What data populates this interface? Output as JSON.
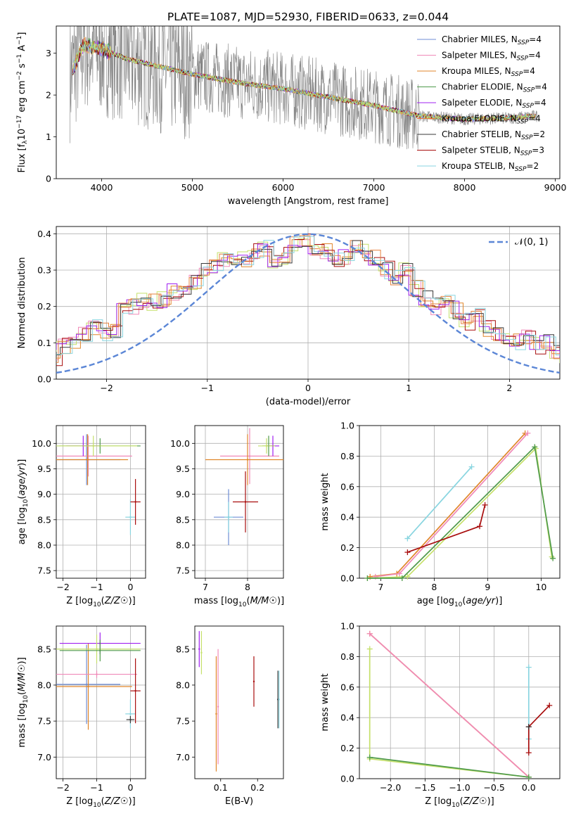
{
  "title": "PLATE=1087, MJD=52930, FIBERID=0633, z=0.044",
  "colors": [
    "#6f8ed6",
    "#f08ab8",
    "#e0862a",
    "#4f9a4a",
    "#a020f0",
    "#e6803d",
    "#3a3a3a",
    "#a80d0d",
    "#89d5e0",
    "#c5e06a"
  ],
  "chart_data": [
    {
      "id": "spectrum",
      "type": "line",
      "xlabel": "wavelength [Angstrom, rest frame]",
      "ylabel": "Flux [f_λ 10^-17 erg cm^-2 s^-1 A^-1]",
      "xlim": [
        3500,
        9050
      ],
      "ylim": [
        0,
        3.65
      ],
      "xticks": [
        "4000",
        "5000",
        "6000",
        "7000",
        "8000",
        "9000"
      ],
      "yticks": [
        "0",
        "1",
        "2",
        "3"
      ],
      "grid": false,
      "legend_position": "top-right",
      "data_continuum": {
        "x": [
          3650,
          3800,
          4000,
          4300,
          4600,
          5000,
          5500,
          6000,
          6500,
          7000,
          7500,
          8000,
          8500,
          8800
        ],
        "y": [
          2.45,
          3.2,
          3.1,
          2.85,
          2.7,
          2.5,
          2.3,
          2.15,
          1.95,
          1.75,
          1.5,
          1.42,
          1.45,
          1.5
        ]
      },
      "series": [
        {
          "name": "Chabrier MILES, N_SSP=4"
        },
        {
          "name": "Salpeter MILES, N_SSP=4"
        },
        {
          "name": "Kroupa MILES, N_SSP=4"
        },
        {
          "name": "Chabrier ELODIE, N_SSP=4"
        },
        {
          "name": "Salpeter ELODIE, N_SSP=4"
        },
        {
          "name": "Kroupa ELODIE, N_SSP=4"
        },
        {
          "name": "Chabrier STELIB, N_SSP=2"
        },
        {
          "name": "Salpeter STELIB, N_SSP=3"
        },
        {
          "name": "Kroupa STELIB, N_SSP=2"
        }
      ]
    },
    {
      "id": "residuals",
      "type": "line",
      "xlabel": "(data-model)/error",
      "ylabel": "Normed distribution",
      "xlim": [
        -2.5,
        2.5
      ],
      "ylim": [
        0,
        0.42
      ],
      "xticks": [
        "−2",
        "−1",
        "0",
        "1",
        "2"
      ],
      "yticks": [
        "0.0",
        "0.1",
        "0.2",
        "0.3",
        "0.4"
      ],
      "grid": true,
      "legend": "𝒩(0, 1)",
      "legend_position": "top-right",
      "histogram_bin_width": 0.1,
      "histogram": [
        0.05,
        0.04,
        0.05,
        0.045,
        0.06,
        0.09,
        0.1,
        0.12,
        0.14,
        0.13,
        0.13,
        0.19,
        0.2,
        0.22,
        0.21,
        0.22,
        0.24,
        0.25,
        0.27,
        0.3,
        0.31,
        0.33,
        0.32,
        0.33,
        0.35,
        0.36,
        0.33,
        0.34,
        0.37,
        0.38,
        0.36,
        0.35,
        0.33,
        0.34,
        0.36,
        0.35,
        0.33,
        0.3,
        0.28,
        0.3,
        0.25,
        0.22,
        0.2,
        0.21,
        0.19,
        0.16,
        0.17,
        0.14,
        0.12,
        0.11,
        0.1,
        0.12,
        0.09,
        0.1,
        0.08,
        0.07,
        0.06,
        0.05,
        0.04,
        0.035
      ]
    },
    {
      "id": "age_vs_Z",
      "type": "scatter",
      "xlabel": "Z [log10(Z/Z☉)]",
      "ylabel": "age  [log10(age/yr)]",
      "xlim": [
        -2.2,
        0.45
      ],
      "ylim": [
        7.35,
        10.35
      ],
      "xticks": [
        "−2",
        "−1",
        "0"
      ],
      "yticks": [
        "7.5",
        "8.0",
        "8.5",
        "9.0",
        "9.5",
        "10.0"
      ],
      "grid": true,
      "points": [
        {
          "x": -1.3,
          "y": 9.68,
          "xerr": 1.0,
          "yerr": 0.5,
          "c": 0
        },
        {
          "x": -1.25,
          "y": 9.75,
          "xerr": 1.3,
          "yerr": 0.4,
          "c": 1
        },
        {
          "x": -1.27,
          "y": 9.68,
          "xerr": 1.2,
          "yerr": 0.5,
          "c": 2
        },
        {
          "x": -0.9,
          "y": 9.95,
          "xerr": 1.2,
          "yerr": 0.15,
          "c": 3
        },
        {
          "x": -1.4,
          "y": 9.95,
          "xerr": 0.5,
          "yerr": 0.2,
          "c": 4
        },
        {
          "x": -1.1,
          "y": 9.95,
          "xerr": 1.3,
          "yerr": 0.2,
          "c": 9
        },
        {
          "x": 0.0,
          "y": 8.55,
          "xerr": 0.15,
          "yerr": 0.35,
          "c": 8
        },
        {
          "x": 0.15,
          "y": 8.85,
          "xerr": 0.15,
          "yerr": 0.45,
          "c": 7
        }
      ]
    },
    {
      "id": "age_vs_mass",
      "type": "scatter",
      "xlabel": "mass [log10(M/M☉)]",
      "ylabel": "",
      "xlim": [
        6.75,
        8.85
      ],
      "ylim": [
        7.35,
        10.35
      ],
      "xticks": [
        "7",
        "8"
      ],
      "yticks": [
        "7.5",
        "8.0",
        "8.5",
        "9.0",
        "9.5",
        "10.0"
      ],
      "grid": true,
      "points": [
        {
          "x": 7.55,
          "y": 8.55,
          "xerr": 0.35,
          "yerr": 0.55,
          "c": 0
        },
        {
          "x": 8.05,
          "y": 9.75,
          "xerr": 0.7,
          "yerr": 0.55,
          "c": 1
        },
        {
          "x": 8.0,
          "y": 9.68,
          "xerr": 1.0,
          "yerr": 0.5,
          "c": 2
        },
        {
          "x": 8.5,
          "y": 9.95,
          "xerr": 0.15,
          "yerr": 0.2,
          "c": 3
        },
        {
          "x": 8.6,
          "y": 9.95,
          "xerr": 0.15,
          "yerr": 0.2,
          "c": 4
        },
        {
          "x": 7.55,
          "y": 8.55,
          "xerr": 0.1,
          "yerr": 0.3,
          "c": 8
        },
        {
          "x": 7.95,
          "y": 8.85,
          "xerr": 0.3,
          "yerr": 0.6,
          "c": 7
        },
        {
          "x": 8.45,
          "y": 9.95,
          "xerr": 0.2,
          "yerr": 0.15,
          "c": 9
        }
      ]
    },
    {
      "id": "weight_vs_age",
      "type": "line",
      "xlabel": "age  [log10(age/yr)]",
      "ylabel": "mass weight",
      "xlim": [
        6.6,
        10.35
      ],
      "ylim": [
        0,
        1.0
      ],
      "xticks": [
        "7",
        "8",
        "9",
        "10"
      ],
      "yticks": [
        "0.0",
        "0.2",
        "0.4",
        "0.6",
        "0.8",
        "1.0"
      ],
      "grid": true,
      "series": [
        {
          "c": 2,
          "x": [
            6.8,
            7.3,
            9.7
          ],
          "y": [
            0.01,
            0.03,
            0.95
          ]
        },
        {
          "c": 1,
          "x": [
            6.9,
            7.35,
            9.75
          ],
          "y": [
            0.01,
            0.03,
            0.95
          ]
        },
        {
          "c": 9,
          "x": [
            6.75,
            7.5,
            9.9,
            10.2
          ],
          "y": [
            0.0,
            0.01,
            0.85,
            0.14
          ]
        },
        {
          "c": 3,
          "x": [
            6.75,
            7.4,
            9.88,
            10.22
          ],
          "y": [
            0.0,
            0.0,
            0.86,
            0.13
          ]
        },
        {
          "c": 8,
          "x": [
            7.5,
            8.7
          ],
          "y": [
            0.26,
            0.73
          ]
        },
        {
          "c": 7,
          "x": [
            7.5,
            8.85,
            8.95
          ],
          "y": [
            0.17,
            0.34,
            0.48
          ]
        }
      ]
    },
    {
      "id": "mass_vs_Z",
      "type": "scatter",
      "xlabel": "Z [log10(Z/Z☉)]",
      "ylabel": "mass [log10(M/M☉)]",
      "xlim": [
        -2.2,
        0.45
      ],
      "ylim": [
        6.7,
        8.82
      ],
      "xticks": [
        "−2",
        "−1",
        "0"
      ],
      "yticks": [
        "7.0",
        "7.5",
        "8.0",
        "8.5"
      ],
      "grid": true,
      "points": [
        {
          "x": -1.3,
          "y": 8.01,
          "xerr": 1.0,
          "yerr": 0.55,
          "c": 0
        },
        {
          "x": -1.25,
          "y": 7.98,
          "xerr": 1.3,
          "yerr": 0.6,
          "c": 2
        },
        {
          "x": -1.0,
          "y": 8.15,
          "xerr": 1.2,
          "yerr": 0.05,
          "c": 1
        },
        {
          "x": -0.9,
          "y": 8.58,
          "xerr": 1.2,
          "yerr": 0.15,
          "c": 4
        },
        {
          "x": -1.0,
          "y": 8.5,
          "xerr": 1.3,
          "yerr": 0.2,
          "c": 9
        },
        {
          "x": -0.9,
          "y": 8.48,
          "xerr": 1.2,
          "yerr": 0.15,
          "c": 3
        },
        {
          "x": 0.0,
          "y": 7.6,
          "xerr": 0.15,
          "yerr": 0.2,
          "c": 8
        },
        {
          "x": 0.0,
          "y": 7.52,
          "xerr": 0.12,
          "yerr": 0.05,
          "c": 6
        },
        {
          "x": 0.15,
          "y": 7.92,
          "xerr": 0.15,
          "yerr": 0.45,
          "c": 7
        }
      ]
    },
    {
      "id": "mass_vs_EBV",
      "type": "scatter",
      "xlabel": "E(B-V)",
      "ylabel": "",
      "xlim": [
        0.03,
        0.27
      ],
      "ylim": [
        6.7,
        8.82
      ],
      "xticks": [
        "0.1",
        "0.2"
      ],
      "yticks": [
        "7.0",
        "7.5",
        "8.0",
        "8.5"
      ],
      "grid": false,
      "points": [
        {
          "x": 0.042,
          "y": 8.5,
          "yerr": 0.25,
          "c": 4
        },
        {
          "x": 0.048,
          "y": 8.45,
          "yerr": 0.3,
          "c": 9
        },
        {
          "x": 0.088,
          "y": 7.6,
          "yerr": 0.8,
          "c": 2
        },
        {
          "x": 0.093,
          "y": 7.7,
          "yerr": 0.8,
          "c": 1
        },
        {
          "x": 0.19,
          "y": 8.05,
          "yerr": 0.35,
          "c": 7
        },
        {
          "x": 0.255,
          "y": 7.8,
          "yerr": 0.4,
          "c": 6
        },
        {
          "x": 0.258,
          "y": 7.8,
          "yerr": 0.4,
          "c": 8
        }
      ]
    },
    {
      "id": "weight_vs_Z",
      "type": "line",
      "xlabel": "Z [log10(Z/Z☉)]",
      "ylabel": "mass weight",
      "xlim": [
        -2.45,
        0.45
      ],
      "ylim": [
        0,
        1.0
      ],
      "xticks": [
        "−2.0",
        "−1.5",
        "−1.0",
        "−0.5",
        "0.0"
      ],
      "yticks": [
        "0.0",
        "0.2",
        "0.4",
        "0.6",
        "0.8",
        "1.0"
      ],
      "grid": true,
      "series": [
        {
          "c": 2,
          "x": [
            -2.3,
            0.0
          ],
          "y": [
            0.95,
            0.01
          ]
        },
        {
          "c": 1,
          "x": [
            -2.3,
            0.0
          ],
          "y": [
            0.95,
            0.01
          ]
        },
        {
          "c": 9,
          "x": [
            -2.3,
            -2.3,
            0.0
          ],
          "y": [
            0.85,
            0.13,
            0.01
          ]
        },
        {
          "c": 3,
          "x": [
            -2.3,
            0.0
          ],
          "y": [
            0.14,
            0.01
          ]
        },
        {
          "c": 8,
          "x": [
            0.0,
            0.0
          ],
          "y": [
            0.73,
            0.26
          ]
        },
        {
          "c": 7,
          "x": [
            0.0,
            0.0,
            0.3
          ],
          "y": [
            0.17,
            0.34,
            0.48
          ]
        },
        {
          "c": 6,
          "x": [
            0.0
          ],
          "y": [
            0.34
          ]
        }
      ]
    }
  ]
}
